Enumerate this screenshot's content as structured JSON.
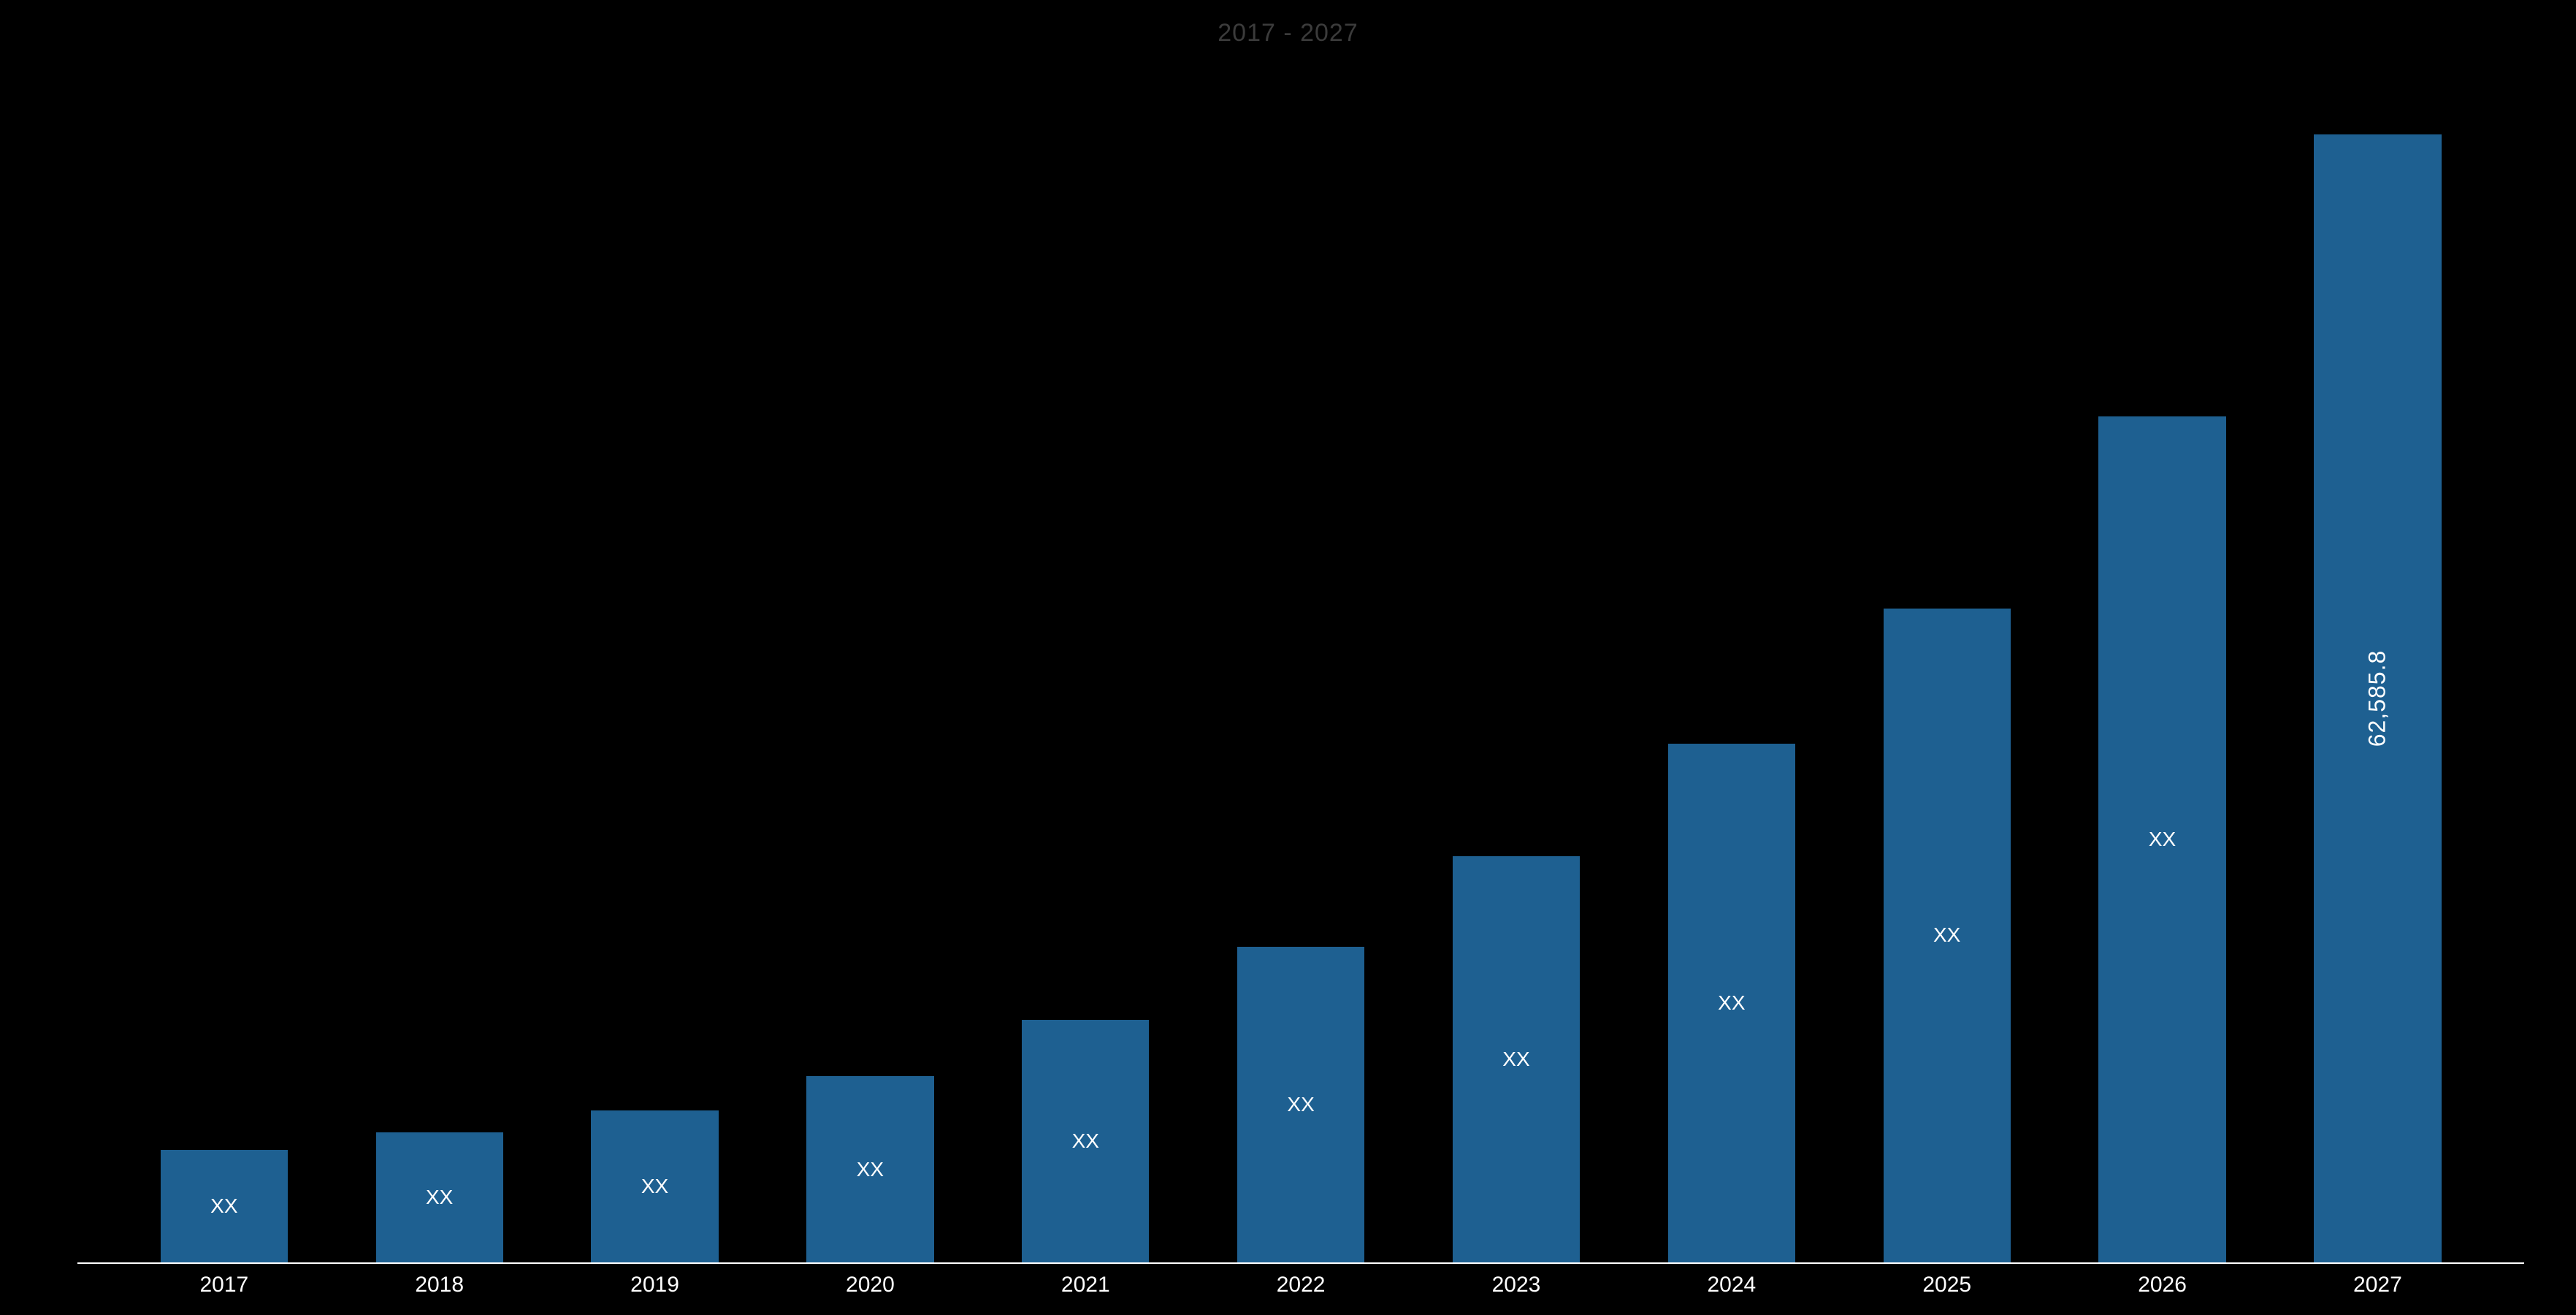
{
  "chart": {
    "type": "bar",
    "title": "2017 - 2027",
    "title_color": "#3b3b3b",
    "title_fontsize": 34,
    "background_color": "#000000",
    "baseline_color": "#ffffff",
    "bar_color": "#1e6091",
    "bar_width_pct": 5.2,
    "gap_pct": 3.6,
    "ymax": 62585.8,
    "text_color": "#ffffff",
    "value_label_fontsize": 28,
    "value_label_fontsize_vert": 32,
    "x_label_fontsize": 30,
    "categories": [
      "2017",
      "2018",
      "2019",
      "2020",
      "2021",
      "2022",
      "2023",
      "2024",
      "2025",
      "2026",
      "2027"
    ],
    "values_relative": [
      0.1,
      0.115,
      0.135,
      0.165,
      0.215,
      0.28,
      0.36,
      0.46,
      0.58,
      0.75,
      1.0
    ],
    "value_labels": [
      "XX",
      "XX",
      "XX",
      "XX",
      "XX",
      "XX",
      "XX",
      "XX",
      "XX",
      "XX",
      "62,585.8"
    ],
    "value_label_orientation": [
      "h",
      "h",
      "h",
      "h",
      "h",
      "h",
      "h",
      "h",
      "h",
      "h",
      "v"
    ]
  }
}
